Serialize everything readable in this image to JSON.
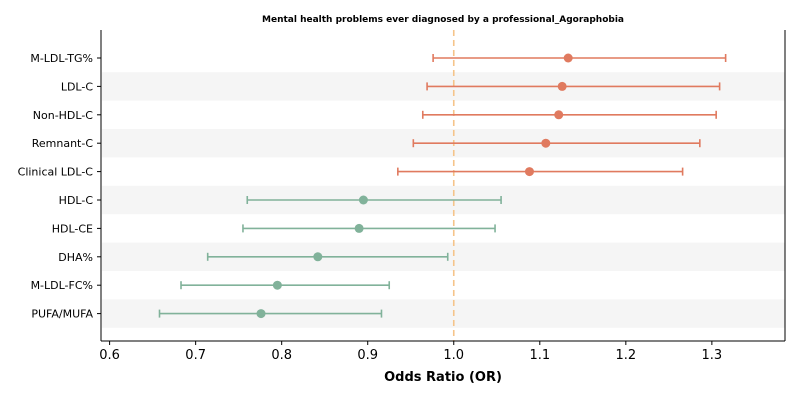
{
  "chart_data": {
    "type": "forest",
    "title": "Mental health problems ever diagnosed by a professional_Agoraphobia",
    "xlabel": "Odds Ratio (OR)",
    "xlim": [
      0.59,
      1.385
    ],
    "xticks": [
      "0.6",
      "0.7",
      "0.8",
      "0.9",
      "1.0",
      "1.1",
      "1.2",
      "1.3"
    ],
    "xtick_values": [
      0.6,
      0.7,
      0.8,
      0.9,
      1.0,
      1.1,
      1.2,
      1.3
    ],
    "reference_line": 1.0,
    "reference_color": "#f5c48a",
    "stripe_color": "#f5f5f5",
    "colors": {
      "positive": "#e07a5f",
      "negative": "#81b29a"
    },
    "rows": [
      {
        "label": "M-LDL-TG%",
        "or": 1.133,
        "lo": 0.976,
        "hi": 1.316,
        "group": "positive"
      },
      {
        "label": "LDL-C",
        "or": 1.126,
        "lo": 0.969,
        "hi": 1.309,
        "group": "positive"
      },
      {
        "label": "Non-HDL-C",
        "or": 1.122,
        "lo": 0.964,
        "hi": 1.305,
        "group": "positive"
      },
      {
        "label": "Remnant-C",
        "or": 1.107,
        "lo": 0.953,
        "hi": 1.286,
        "group": "positive"
      },
      {
        "label": "Clinical LDL-C",
        "or": 1.088,
        "lo": 0.935,
        "hi": 1.266,
        "group": "positive"
      },
      {
        "label": "HDL-C",
        "or": 0.895,
        "lo": 0.76,
        "hi": 1.055,
        "group": "negative"
      },
      {
        "label": "HDL-CE",
        "or": 0.89,
        "lo": 0.755,
        "hi": 1.048,
        "group": "negative"
      },
      {
        "label": "DHA%",
        "or": 0.842,
        "lo": 0.714,
        "hi": 0.993,
        "group": "negative"
      },
      {
        "label": "M-LDL-FC%",
        "or": 0.795,
        "lo": 0.683,
        "hi": 0.925,
        "group": "negative"
      },
      {
        "label": "PUFA/MUFA",
        "or": 0.776,
        "lo": 0.658,
        "hi": 0.916,
        "group": "negative"
      }
    ]
  }
}
